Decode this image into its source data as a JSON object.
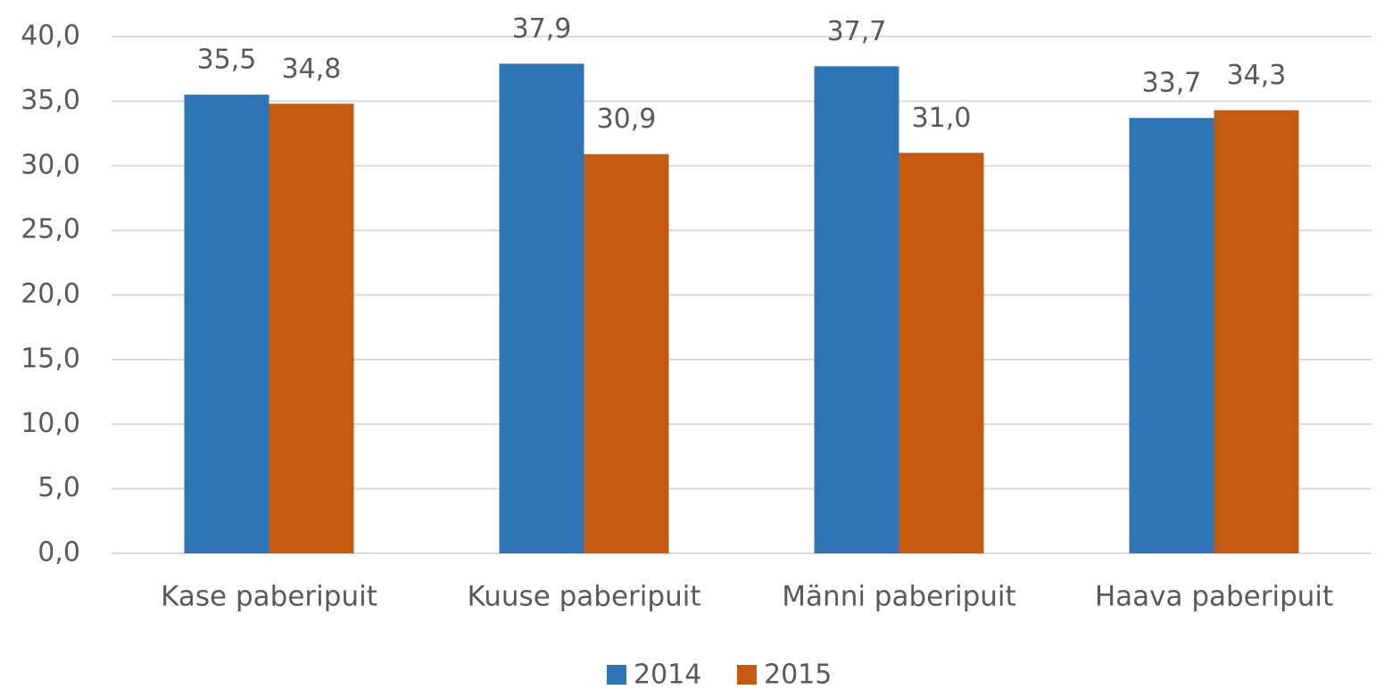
{
  "chart_data": {
    "type": "bar",
    "categories": [
      "Kase paberipuit",
      "Kuuse paberipuit",
      "Männi paberipuit",
      "Haava paberipuit"
    ],
    "series": [
      {
        "name": "2014",
        "color": "#2e75b6",
        "values": [
          35.5,
          37.9,
          37.7,
          33.7
        ],
        "value_labels": [
          "35,5",
          "37,9",
          "37,7",
          "33,7"
        ]
      },
      {
        "name": "2015",
        "color": "#c55a11",
        "values": [
          34.8,
          30.9,
          31.0,
          34.3
        ],
        "value_labels": [
          "34,8",
          "30,9",
          "31,0",
          "34,3"
        ]
      }
    ],
    "ylim": [
      0,
      40
    ],
    "yticks": [
      {
        "value": 0,
        "label": "0,0"
      },
      {
        "value": 5,
        "label": "5,0"
      },
      {
        "value": 10,
        "label": "10,0"
      },
      {
        "value": 15,
        "label": "15,0"
      },
      {
        "value": 20,
        "label": "20,0"
      },
      {
        "value": 25,
        "label": "25,0"
      },
      {
        "value": 30,
        "label": "30,0"
      },
      {
        "value": 35,
        "label": "35,0"
      },
      {
        "value": 40,
        "label": "40,0"
      }
    ],
    "grid": true,
    "legend": "bottom"
  }
}
